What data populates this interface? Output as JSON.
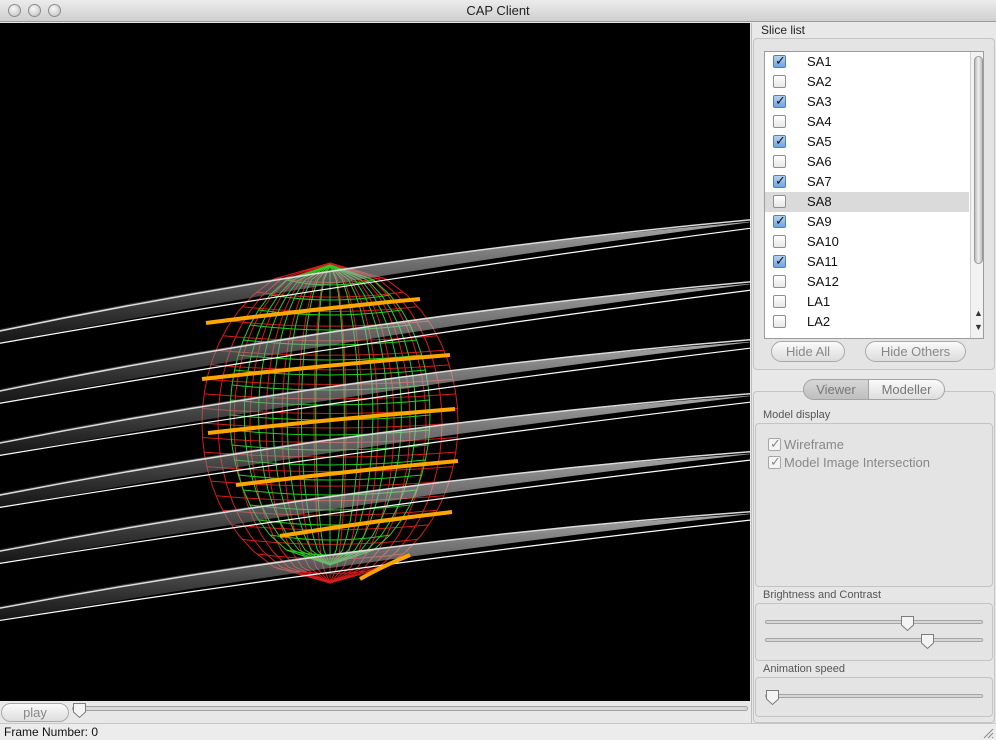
{
  "window": {
    "title": "CAP Client"
  },
  "slice_list": {
    "title": "Slice list",
    "items": [
      {
        "label": "SA1",
        "checked": true
      },
      {
        "label": "SA2",
        "checked": false
      },
      {
        "label": "SA3",
        "checked": true
      },
      {
        "label": "SA4",
        "checked": false
      },
      {
        "label": "SA5",
        "checked": true
      },
      {
        "label": "SA6",
        "checked": false
      },
      {
        "label": "SA7",
        "checked": true
      },
      {
        "label": "SA8",
        "checked": false,
        "selected": true
      },
      {
        "label": "SA9",
        "checked": true
      },
      {
        "label": "SA10",
        "checked": false
      },
      {
        "label": "SA11",
        "checked": true
      },
      {
        "label": "SA12",
        "checked": false
      },
      {
        "label": "LA1",
        "checked": false
      },
      {
        "label": "LA2",
        "checked": false
      }
    ],
    "hide_all_label": "Hide All",
    "hide_others_label": "Hide Others"
  },
  "mode_tabs": {
    "viewer": "Viewer",
    "modeller": "Modeller",
    "active": "viewer"
  },
  "model_display": {
    "title": "Model display",
    "wireframe": {
      "label": "Wireframe",
      "checked": true
    },
    "intersection": {
      "label": "Model Image Intersection",
      "checked": true
    }
  },
  "brightness_contrast": {
    "title": "Brightness and Contrast",
    "brightness": 0.66,
    "contrast": 0.76
  },
  "animation_speed": {
    "title": "Animation speed",
    "value": 0.0
  },
  "playback": {
    "play_label": "play",
    "frame_position": 0.0
  },
  "status": {
    "frame_number": "Frame Number: 0"
  },
  "colors": {
    "wireframe_outer": "#d81b1b",
    "wireframe_inner": "#22d022",
    "intersection": "#ffa500",
    "checkbox_checked": "#6fa3e4"
  }
}
